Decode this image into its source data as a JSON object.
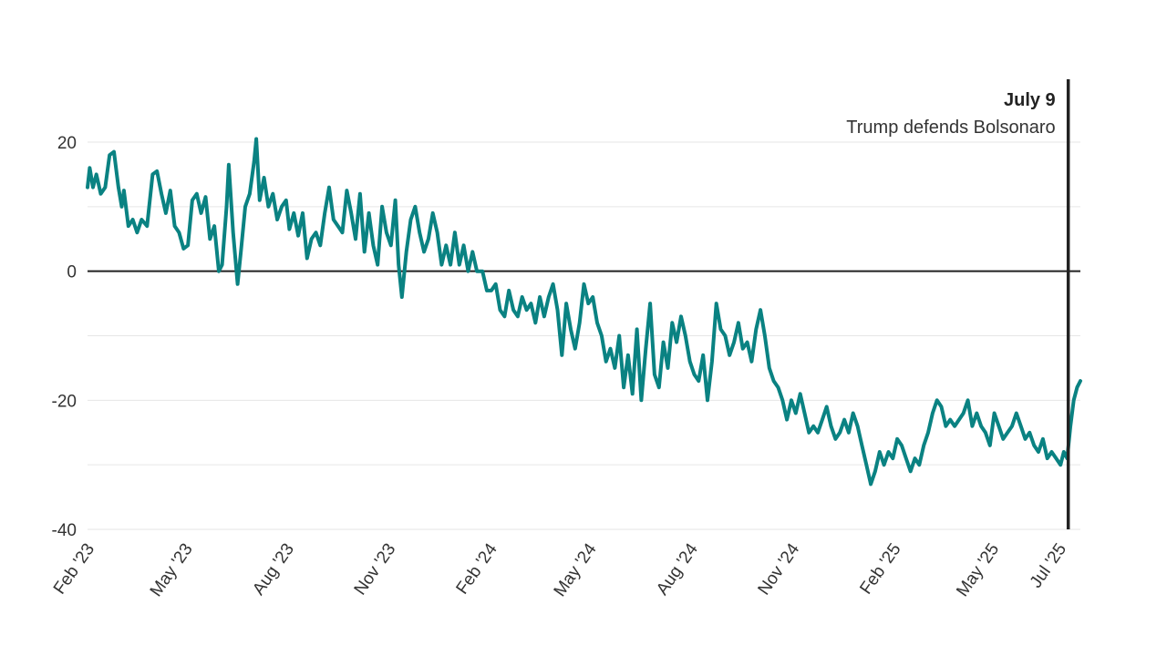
{
  "chart_data": {
    "type": "line",
    "title": "",
    "xlabel": "",
    "ylabel": "",
    "x_range": [
      "2023-02-01",
      "2025-07-20"
    ],
    "ylim": [
      -40,
      30
    ],
    "y_tick_labels": [
      {
        "value": 20,
        "label": "20"
      },
      {
        "value": 0,
        "label": "0"
      },
      {
        "value": -20,
        "label": "-20"
      },
      {
        "value": -40,
        "label": "-40"
      }
    ],
    "y_gridlines": [
      20,
      10,
      -10,
      -20,
      -30,
      -40
    ],
    "zero_line": 0,
    "x_ticks": [
      {
        "date": "2023-02-01",
        "label": "Feb '23"
      },
      {
        "date": "2023-05-01",
        "label": "May '23"
      },
      {
        "date": "2023-08-01",
        "label": "Aug '23"
      },
      {
        "date": "2023-11-01",
        "label": "Nov '23"
      },
      {
        "date": "2024-02-01",
        "label": "Feb '24"
      },
      {
        "date": "2024-05-01",
        "label": "May '24"
      },
      {
        "date": "2024-08-01",
        "label": "Aug '24"
      },
      {
        "date": "2024-11-01",
        "label": "Nov '24"
      },
      {
        "date": "2025-02-01",
        "label": "Feb '25"
      },
      {
        "date": "2025-05-01",
        "label": "May '25"
      },
      {
        "date": "2025-07-01",
        "label": "Jul '25"
      }
    ],
    "series": [
      {
        "color": "#0a8282",
        "points": [
          [
            "2023-02-01",
            13
          ],
          [
            "2023-02-03",
            16
          ],
          [
            "2023-02-06",
            13
          ],
          [
            "2023-02-09",
            15
          ],
          [
            "2023-02-13",
            12
          ],
          [
            "2023-02-17",
            13
          ],
          [
            "2023-02-21",
            18
          ],
          [
            "2023-02-25",
            18.5
          ],
          [
            "2023-03-01",
            13
          ],
          [
            "2023-03-04",
            10
          ],
          [
            "2023-03-06",
            12.5
          ],
          [
            "2023-03-10",
            7
          ],
          [
            "2023-03-14",
            8
          ],
          [
            "2023-03-18",
            6
          ],
          [
            "2023-03-22",
            8
          ],
          [
            "2023-03-27",
            7
          ],
          [
            "2023-04-01",
            15
          ],
          [
            "2023-04-05",
            15.5
          ],
          [
            "2023-04-09",
            12
          ],
          [
            "2023-04-13",
            9
          ],
          [
            "2023-04-17",
            12.5
          ],
          [
            "2023-04-21",
            7
          ],
          [
            "2023-04-25",
            6
          ],
          [
            "2023-04-29",
            3.5
          ],
          [
            "2023-05-03",
            4
          ],
          [
            "2023-05-07",
            11
          ],
          [
            "2023-05-11",
            12
          ],
          [
            "2023-05-15",
            9
          ],
          [
            "2023-05-19",
            11.5
          ],
          [
            "2023-05-23",
            5
          ],
          [
            "2023-05-27",
            7
          ],
          [
            "2023-05-31",
            0
          ],
          [
            "2023-06-03",
            1
          ],
          [
            "2023-06-07",
            10
          ],
          [
            "2023-06-09",
            16.5
          ],
          [
            "2023-06-13",
            6
          ],
          [
            "2023-06-17",
            -2
          ],
          [
            "2023-06-20",
            3
          ],
          [
            "2023-06-24",
            10
          ],
          [
            "2023-06-28",
            12
          ],
          [
            "2023-07-02",
            17
          ],
          [
            "2023-07-04",
            20.5
          ],
          [
            "2023-07-07",
            11
          ],
          [
            "2023-07-11",
            14.5
          ],
          [
            "2023-07-15",
            10
          ],
          [
            "2023-07-19",
            12
          ],
          [
            "2023-07-23",
            8
          ],
          [
            "2023-07-27",
            10
          ],
          [
            "2023-07-31",
            11
          ],
          [
            "2023-08-03",
            6.5
          ],
          [
            "2023-08-07",
            9
          ],
          [
            "2023-08-11",
            5.5
          ],
          [
            "2023-08-15",
            9
          ],
          [
            "2023-08-19",
            2
          ],
          [
            "2023-08-23",
            5
          ],
          [
            "2023-08-27",
            6
          ],
          [
            "2023-08-31",
            4
          ],
          [
            "2023-09-04",
            9
          ],
          [
            "2023-09-08",
            13
          ],
          [
            "2023-09-12",
            8
          ],
          [
            "2023-09-16",
            7
          ],
          [
            "2023-09-20",
            6
          ],
          [
            "2023-09-24",
            12.5
          ],
          [
            "2023-09-28",
            9
          ],
          [
            "2023-10-02",
            5
          ],
          [
            "2023-10-06",
            12
          ],
          [
            "2023-10-10",
            3
          ],
          [
            "2023-10-14",
            9
          ],
          [
            "2023-10-18",
            4
          ],
          [
            "2023-10-22",
            1
          ],
          [
            "2023-10-26",
            10
          ],
          [
            "2023-10-30",
            6
          ],
          [
            "2023-11-03",
            4
          ],
          [
            "2023-11-07",
            11
          ],
          [
            "2023-11-10",
            1
          ],
          [
            "2023-11-13",
            -4
          ],
          [
            "2023-11-17",
            3
          ],
          [
            "2023-11-21",
            8
          ],
          [
            "2023-11-25",
            10
          ],
          [
            "2023-11-29",
            6
          ],
          [
            "2023-12-03",
            3
          ],
          [
            "2023-12-07",
            5
          ],
          [
            "2023-12-11",
            9
          ],
          [
            "2023-12-15",
            6
          ],
          [
            "2023-12-19",
            1
          ],
          [
            "2023-12-23",
            4
          ],
          [
            "2023-12-27",
            1
          ],
          [
            "2023-12-31",
            6
          ],
          [
            "2024-01-04",
            1
          ],
          [
            "2024-01-08",
            4
          ],
          [
            "2024-01-12",
            0
          ],
          [
            "2024-01-16",
            3
          ],
          [
            "2024-01-20",
            0
          ],
          [
            "2024-01-25",
            0
          ],
          [
            "2024-01-29",
            -3
          ],
          [
            "2024-02-02",
            -3
          ],
          [
            "2024-02-06",
            -2
          ],
          [
            "2024-02-10",
            -6
          ],
          [
            "2024-02-14",
            -7
          ],
          [
            "2024-02-18",
            -3
          ],
          [
            "2024-02-22",
            -6
          ],
          [
            "2024-02-26",
            -7
          ],
          [
            "2024-03-01",
            -4
          ],
          [
            "2024-03-05",
            -6
          ],
          [
            "2024-03-09",
            -5
          ],
          [
            "2024-03-13",
            -8
          ],
          [
            "2024-03-17",
            -4
          ],
          [
            "2024-03-21",
            -7
          ],
          [
            "2024-03-25",
            -4
          ],
          [
            "2024-03-29",
            -2
          ],
          [
            "2024-04-02",
            -6
          ],
          [
            "2024-04-06",
            -13
          ],
          [
            "2024-04-10",
            -5
          ],
          [
            "2024-04-14",
            -9
          ],
          [
            "2024-04-18",
            -12
          ],
          [
            "2024-04-22",
            -8
          ],
          [
            "2024-04-26",
            -2
          ],
          [
            "2024-04-30",
            -5
          ],
          [
            "2024-05-04",
            -4
          ],
          [
            "2024-05-08",
            -8
          ],
          [
            "2024-05-12",
            -10
          ],
          [
            "2024-05-16",
            -14
          ],
          [
            "2024-05-20",
            -12
          ],
          [
            "2024-05-24",
            -15
          ],
          [
            "2024-05-28",
            -10
          ],
          [
            "2024-06-01",
            -18
          ],
          [
            "2024-06-05",
            -13
          ],
          [
            "2024-06-09",
            -19
          ],
          [
            "2024-06-13",
            -9
          ],
          [
            "2024-06-17",
            -20
          ],
          [
            "2024-06-21",
            -12
          ],
          [
            "2024-06-25",
            -5
          ],
          [
            "2024-06-29",
            -16
          ],
          [
            "2024-07-03",
            -18
          ],
          [
            "2024-07-07",
            -11
          ],
          [
            "2024-07-11",
            -15
          ],
          [
            "2024-07-15",
            -8
          ],
          [
            "2024-07-19",
            -11
          ],
          [
            "2024-07-23",
            -7
          ],
          [
            "2024-07-27",
            -10
          ],
          [
            "2024-07-31",
            -14
          ],
          [
            "2024-08-04",
            -16
          ],
          [
            "2024-08-08",
            -17
          ],
          [
            "2024-08-12",
            -13
          ],
          [
            "2024-08-16",
            -20
          ],
          [
            "2024-08-20",
            -14
          ],
          [
            "2024-08-24",
            -5
          ],
          [
            "2024-08-28",
            -9
          ],
          [
            "2024-09-01",
            -10
          ],
          [
            "2024-09-05",
            -13
          ],
          [
            "2024-09-09",
            -11
          ],
          [
            "2024-09-13",
            -8
          ],
          [
            "2024-09-17",
            -12
          ],
          [
            "2024-09-21",
            -11
          ],
          [
            "2024-09-25",
            -14
          ],
          [
            "2024-09-29",
            -9
          ],
          [
            "2024-10-03",
            -6
          ],
          [
            "2024-10-07",
            -10
          ],
          [
            "2024-10-11",
            -15
          ],
          [
            "2024-10-15",
            -17
          ],
          [
            "2024-10-19",
            -18
          ],
          [
            "2024-10-23",
            -20
          ],
          [
            "2024-10-27",
            -23
          ],
          [
            "2024-10-31",
            -20
          ],
          [
            "2024-11-04",
            -22
          ],
          [
            "2024-11-08",
            -19
          ],
          [
            "2024-11-12",
            -22
          ],
          [
            "2024-11-16",
            -25
          ],
          [
            "2024-11-20",
            -24
          ],
          [
            "2024-11-24",
            -25
          ],
          [
            "2024-11-28",
            -23
          ],
          [
            "2024-12-02",
            -21
          ],
          [
            "2024-12-06",
            -24
          ],
          [
            "2024-12-10",
            -26
          ],
          [
            "2024-12-14",
            -25
          ],
          [
            "2024-12-18",
            -23
          ],
          [
            "2024-12-22",
            -25
          ],
          [
            "2024-12-26",
            -22
          ],
          [
            "2024-12-30",
            -24
          ],
          [
            "2025-01-03",
            -27
          ],
          [
            "2025-01-07",
            -30
          ],
          [
            "2025-01-11",
            -33
          ],
          [
            "2025-01-15",
            -31
          ],
          [
            "2025-01-19",
            -28
          ],
          [
            "2025-01-23",
            -30
          ],
          [
            "2025-01-27",
            -28
          ],
          [
            "2025-01-31",
            -29
          ],
          [
            "2025-02-04",
            -26
          ],
          [
            "2025-02-08",
            -27
          ],
          [
            "2025-02-12",
            -29
          ],
          [
            "2025-02-16",
            -31
          ],
          [
            "2025-02-20",
            -29
          ],
          [
            "2025-02-24",
            -30
          ],
          [
            "2025-02-28",
            -27
          ],
          [
            "2025-03-04",
            -25
          ],
          [
            "2025-03-08",
            -22
          ],
          [
            "2025-03-12",
            -20
          ],
          [
            "2025-03-16",
            -21
          ],
          [
            "2025-03-20",
            -24
          ],
          [
            "2025-03-24",
            -23
          ],
          [
            "2025-03-28",
            -24
          ],
          [
            "2025-04-01",
            -23
          ],
          [
            "2025-04-05",
            -22
          ],
          [
            "2025-04-09",
            -20
          ],
          [
            "2025-04-13",
            -24
          ],
          [
            "2025-04-17",
            -22
          ],
          [
            "2025-04-21",
            -24
          ],
          [
            "2025-04-25",
            -25
          ],
          [
            "2025-04-29",
            -27
          ],
          [
            "2025-05-03",
            -22
          ],
          [
            "2025-05-07",
            -24
          ],
          [
            "2025-05-11",
            -26
          ],
          [
            "2025-05-15",
            -25
          ],
          [
            "2025-05-19",
            -24
          ],
          [
            "2025-05-23",
            -22
          ],
          [
            "2025-05-27",
            -24
          ],
          [
            "2025-05-31",
            -26
          ],
          [
            "2025-06-04",
            -25
          ],
          [
            "2025-06-08",
            -27
          ],
          [
            "2025-06-12",
            -28
          ],
          [
            "2025-06-16",
            -26
          ],
          [
            "2025-06-20",
            -29
          ],
          [
            "2025-06-24",
            -28
          ],
          [
            "2025-06-28",
            -29
          ],
          [
            "2025-07-02",
            -30
          ],
          [
            "2025-07-05",
            -28
          ],
          [
            "2025-07-08",
            -29
          ],
          [
            "2025-07-11",
            -24
          ],
          [
            "2025-07-14",
            -20
          ],
          [
            "2025-07-17",
            -18
          ],
          [
            "2025-07-20",
            -17
          ]
        ]
      }
    ],
    "annotation": {
      "date": "2025-07-09",
      "label": "July 9",
      "text": "Trump defends Bolsonaro"
    },
    "grid": true,
    "legend": false
  }
}
